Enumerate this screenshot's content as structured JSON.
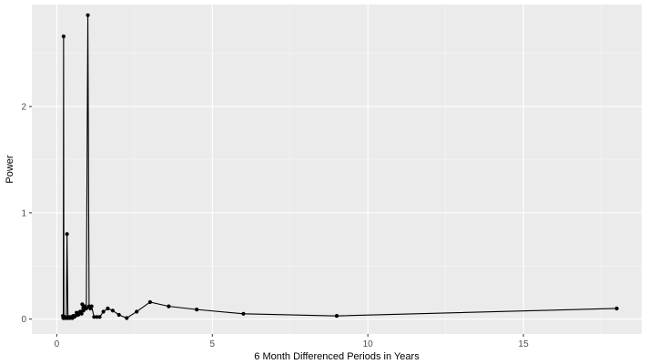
{
  "chart_data": {
    "type": "line",
    "xlabel": "6 Month Differenced Periods in Years",
    "ylabel": "Power",
    "xlim": [
      -0.8,
      18.8
    ],
    "ylim": [
      -0.14,
      2.96
    ],
    "x_ticks": [
      0,
      5,
      10,
      15
    ],
    "x_tick_labels": [
      "0",
      "5",
      "10",
      "15"
    ],
    "y_ticks": [
      0,
      1,
      2
    ],
    "y_tick_labels": [
      "0",
      "1",
      "2"
    ],
    "grid": true,
    "legend": "none",
    "series": [
      {
        "points": [
          [
            0.2,
            0.03
          ],
          [
            0.21,
            0.01
          ],
          [
            0.22,
            2.66
          ],
          [
            0.23,
            0.02
          ],
          [
            0.25,
            0.01
          ],
          [
            0.28,
            0.02
          ],
          [
            0.31,
            0.01
          ],
          [
            0.33,
            0.8
          ],
          [
            0.36,
            0.01
          ],
          [
            0.39,
            0.02
          ],
          [
            0.42,
            0.01
          ],
          [
            0.45,
            0.02
          ],
          [
            0.5,
            0.01
          ],
          [
            0.53,
            0.03
          ],
          [
            0.56,
            0.02
          ],
          [
            0.6,
            0.03
          ],
          [
            0.64,
            0.06
          ],
          [
            0.69,
            0.04
          ],
          [
            0.75,
            0.07
          ],
          [
            0.8,
            0.05
          ],
          [
            0.82,
            0.14
          ],
          [
            0.86,
            0.08
          ],
          [
            0.9,
            0.12
          ],
          [
            0.95,
            0.1
          ],
          [
            1.0,
            2.86
          ],
          [
            1.04,
            0.12
          ],
          [
            1.08,
            0.1
          ],
          [
            1.12,
            0.12
          ],
          [
            1.2,
            0.02
          ],
          [
            1.29,
            0.02
          ],
          [
            1.38,
            0.02
          ],
          [
            1.5,
            0.07
          ],
          [
            1.64,
            0.1
          ],
          [
            1.8,
            0.08
          ],
          [
            2.0,
            0.04
          ],
          [
            2.25,
            0.01
          ],
          [
            2.57,
            0.07
          ],
          [
            3.0,
            0.16
          ],
          [
            3.6,
            0.12
          ],
          [
            4.5,
            0.09
          ],
          [
            6.0,
            0.05
          ],
          [
            9.0,
            0.03
          ],
          [
            18.0,
            0.1
          ]
        ]
      }
    ]
  },
  "colors": {
    "panel_background": "#ebebeb",
    "grid_major": "#ffffff",
    "grid_minor": "#f5f5f5",
    "line": "#000000",
    "point": "#000000",
    "tick_label": "#4d4d4d"
  }
}
